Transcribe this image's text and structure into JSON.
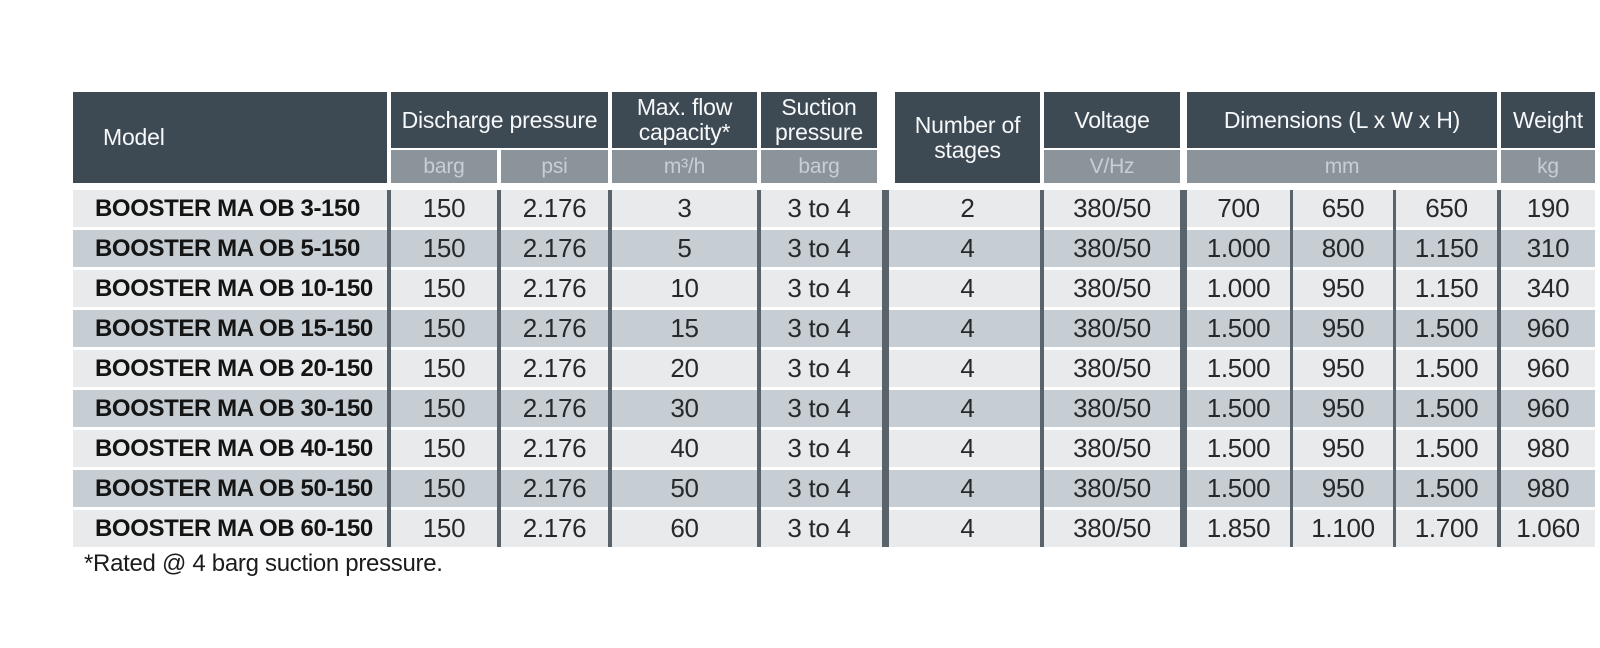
{
  "table": {
    "header": {
      "model": "Model",
      "discharge": "Discharge pressure",
      "max_flow": "Max. flow\ncapacity*",
      "suction": "Suction\npressure",
      "stages": "Number of\nstages",
      "voltage": "Voltage",
      "dimensions": "Dimensions (L x W x H)",
      "weight": "Weight"
    },
    "subheader": {
      "discharge_barg": "barg",
      "discharge_psi": "psi",
      "flow_unit": "m³/h",
      "suction_barg": "barg",
      "voltage_unit": "V/Hz",
      "dimensions_unit": "mm",
      "weight_unit": "kg"
    },
    "rows": [
      {
        "model": "BOOSTER MA OB 3-150",
        "barg": "150",
        "psi": "2.176",
        "flow": "3",
        "suction": "3 to 4",
        "stages": "2",
        "voltage": "380/50",
        "dim_l": "700",
        "dim_w": "650",
        "dim_h": "650",
        "weight": "190"
      },
      {
        "model": "BOOSTER MA OB 5-150",
        "barg": "150",
        "psi": "2.176",
        "flow": "5",
        "suction": "3 to 4",
        "stages": "4",
        "voltage": "380/50",
        "dim_l": "1.000",
        "dim_w": "800",
        "dim_h": "1.150",
        "weight": "310"
      },
      {
        "model": "BOOSTER MA OB 10-150",
        "barg": "150",
        "psi": "2.176",
        "flow": "10",
        "suction": "3 to 4",
        "stages": "4",
        "voltage": "380/50",
        "dim_l": "1.000",
        "dim_w": "950",
        "dim_h": "1.150",
        "weight": "340"
      },
      {
        "model": "BOOSTER MA OB 15-150",
        "barg": "150",
        "psi": "2.176",
        "flow": "15",
        "suction": "3 to 4",
        "stages": "4",
        "voltage": "380/50",
        "dim_l": "1.500",
        "dim_w": "950",
        "dim_h": "1.500",
        "weight": "960"
      },
      {
        "model": "BOOSTER MA OB 20-150",
        "barg": "150",
        "psi": "2.176",
        "flow": "20",
        "suction": "3 to 4",
        "stages": "4",
        "voltage": "380/50",
        "dim_l": "1.500",
        "dim_w": "950",
        "dim_h": "1.500",
        "weight": "960"
      },
      {
        "model": "BOOSTER MA OB 30-150",
        "barg": "150",
        "psi": "2.176",
        "flow": "30",
        "suction": "3 to 4",
        "stages": "4",
        "voltage": "380/50",
        "dim_l": "1.500",
        "dim_w": "950",
        "dim_h": "1.500",
        "weight": "960"
      },
      {
        "model": "BOOSTER MA OB 40-150",
        "barg": "150",
        "psi": "2.176",
        "flow": "40",
        "suction": "3 to 4",
        "stages": "4",
        "voltage": "380/50",
        "dim_l": "1.500",
        "dim_w": "950",
        "dim_h": "1.500",
        "weight": "980"
      },
      {
        "model": "BOOSTER MA OB 50-150",
        "barg": "150",
        "psi": "2.176",
        "flow": "50",
        "suction": "3 to 4",
        "stages": "4",
        "voltage": "380/50",
        "dim_l": "1.500",
        "dim_w": "950",
        "dim_h": "1.500",
        "weight": "980"
      },
      {
        "model": "BOOSTER MA OB 60-150",
        "barg": "150",
        "psi": "2.176",
        "flow": "60",
        "suction": "3 to 4",
        "stages": "4",
        "voltage": "380/50",
        "dim_l": "1.850",
        "dim_w": "1.100",
        "dim_h": "1.700",
        "weight": "1.060"
      }
    ],
    "footnote": "*Rated @ 4 barg suction pressure."
  },
  "colors": {
    "page_bg": "#FFFFFF",
    "header_bg": "#3E4A53",
    "header_text": "#F6F8F9",
    "subheader_bg": "#8B949B",
    "subheader_text": "#C9CED3",
    "row_light": "#E8EAEB",
    "row_dark": "#C6CDD3",
    "column_separator": "#59636B",
    "data_text": "#26292C",
    "model_text": "#141414"
  }
}
